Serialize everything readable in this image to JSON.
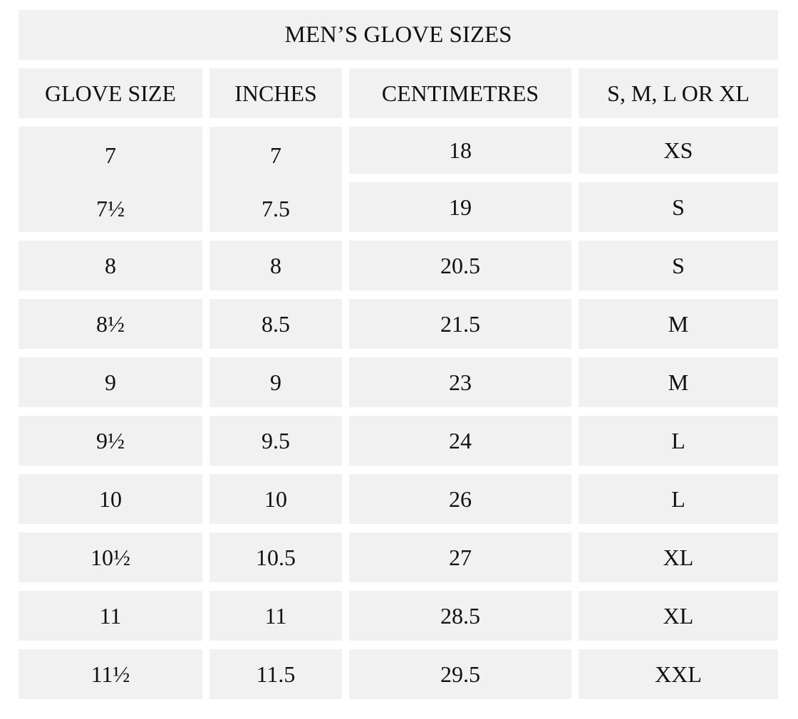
{
  "title": "MEN’S GLOVE SIZES",
  "headers": [
    "GLOVE SIZE",
    "INCHES",
    "CENTIMETRES",
    "S, M, L OR XL"
  ],
  "rows": [
    {
      "glove_size": "7",
      "inches": "7",
      "centimetres": "18",
      "size": "XS"
    },
    {
      "glove_size": "7½",
      "inches": "7.5",
      "centimetres": "19",
      "size": "S"
    },
    {
      "glove_size": "8",
      "inches": "8",
      "centimetres": "20.5",
      "size": "S"
    },
    {
      "glove_size": "8½",
      "inches": "8.5",
      "centimetres": "21.5",
      "size": "M"
    },
    {
      "glove_size": "9",
      "inches": "9",
      "centimetres": "23",
      "size": "M"
    },
    {
      "glove_size": "9½",
      "inches": "9.5",
      "centimetres": "24",
      "size": "L"
    },
    {
      "glove_size": "10",
      "inches": "10",
      "centimetres": "26",
      "size": "L"
    },
    {
      "glove_size": "10½",
      "inches": "10.5",
      "centimetres": "27",
      "size": "XL"
    },
    {
      "glove_size": "11",
      "inches": "11",
      "centimetres": "28.5",
      "size": "XL"
    },
    {
      "glove_size": "11½",
      "inches": "11.5",
      "centimetres": "29.5",
      "size": "XXL"
    }
  ]
}
